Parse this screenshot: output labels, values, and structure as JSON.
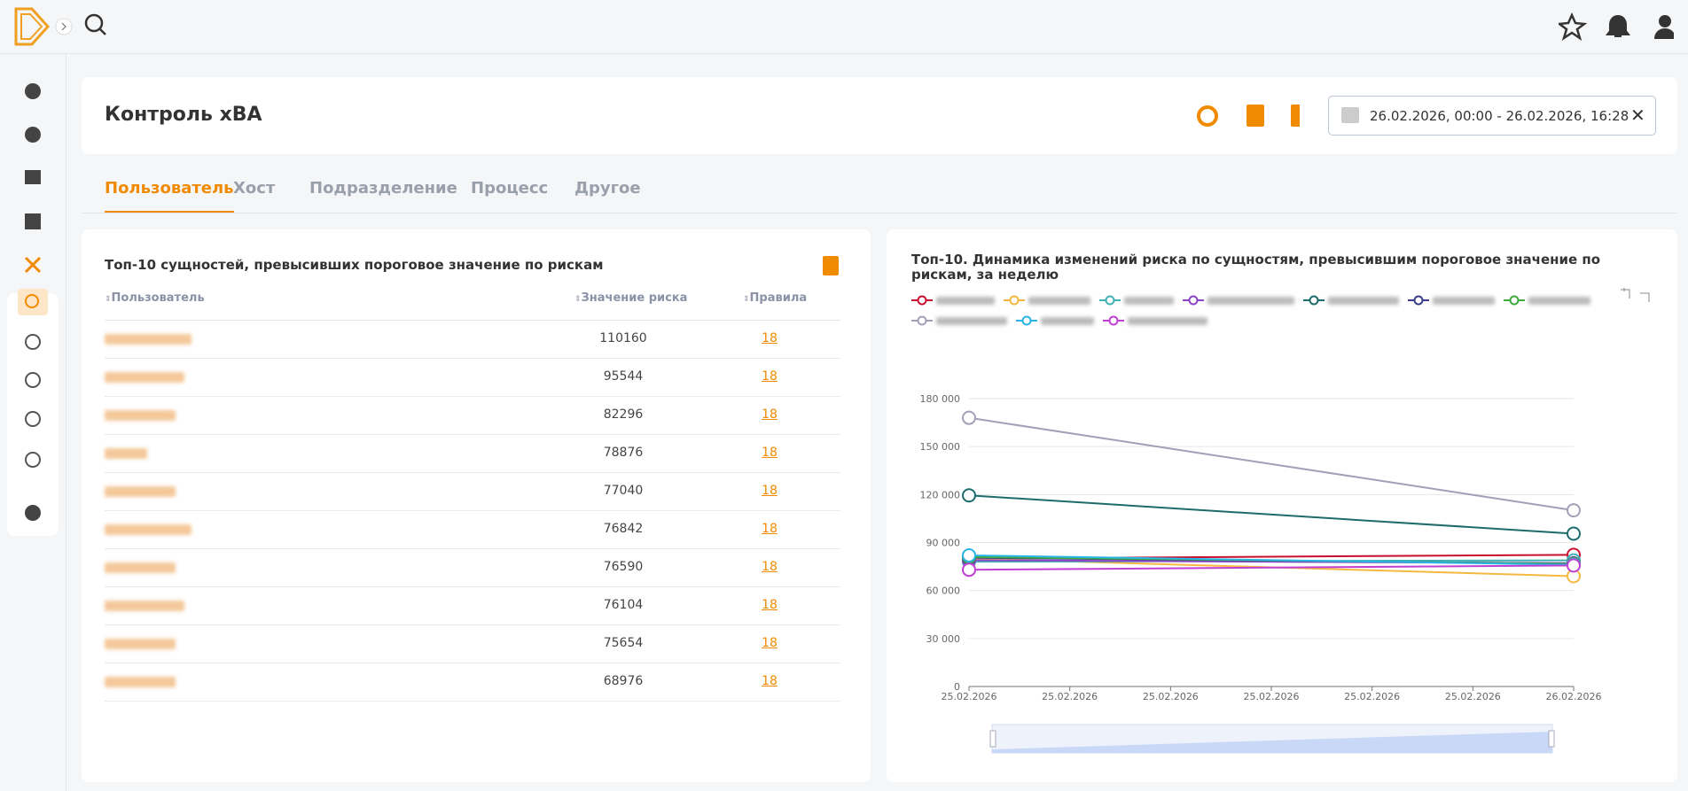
{
  "header": {
    "title": "Контроль xBA",
    "date_range": "26.02.2026, 00:00 - 26.02.2026, 16:28"
  },
  "tabs": [
    "Пользователь",
    "Хост",
    "Подразделение",
    "Процесс",
    "Другое"
  ],
  "table": {
    "title": "Топ-10 сущностей, превысивших пороговое значение по рискам",
    "columns": [
      "Пользователь",
      "Значение риска",
      "Правила"
    ],
    "rows": [
      {
        "risk": 110160,
        "rules": 18
      },
      {
        "risk": 95544,
        "rules": 18
      },
      {
        "risk": 82296,
        "rules": 18
      },
      {
        "risk": 78876,
        "rules": 18
      },
      {
        "risk": 77040,
        "rules": 18
      },
      {
        "risk": 76842,
        "rules": 18
      },
      {
        "risk": 76590,
        "rules": 18
      },
      {
        "risk": 76104,
        "rules": 18
      },
      {
        "risk": 75654,
        "rules": 18
      },
      {
        "risk": 68976,
        "rules": 18
      }
    ]
  },
  "chart_data": {
    "type": "line",
    "title": "Топ-10. Динамика изменений риска по сущностям, превысившим пороговое значение по рискам, за неделю",
    "x": [
      0,
      6
    ],
    "xlim": [
      0,
      6
    ],
    "xticks": [
      {
        "value": 0,
        "label": "25.02.2026"
      },
      {
        "value": 1,
        "label": "25.02.2026"
      },
      {
        "value": 2,
        "label": "25.02.2026"
      },
      {
        "value": 3,
        "label": "25.02.2026"
      },
      {
        "value": 4,
        "label": "25.02.2026"
      },
      {
        "value": 5,
        "label": "25.02.2026"
      },
      {
        "value": 6,
        "label": "26.02.2026"
      }
    ],
    "ylim": [
      0,
      180000
    ],
    "yticks": [
      0,
      {
        "value": 30000,
        "label": "30 000"
      },
      {
        "value": 60000,
        "label": "60 000"
      },
      {
        "value": 90000,
        "label": "90 000"
      },
      {
        "value": 120000,
        "label": "120 000"
      },
      {
        "value": 150000,
        "label": "150 000"
      },
      {
        "value": 180000,
        "label": "180 000"
      }
    ],
    "grid": true,
    "series": [
      {
        "color": "#c8102e",
        "values": [
          80000,
          82296
        ]
      },
      {
        "color": "#f5b942",
        "values": [
          80000,
          68976
        ]
      },
      {
        "color": "#3fb1b5",
        "values": [
          78000,
          78876
        ]
      },
      {
        "color": "#8e44c9",
        "values": [
          79000,
          77040
        ]
      },
      {
        "color": "#1e6b6b",
        "values": [
          119500,
          95544
        ]
      },
      {
        "color": "#3b3b8a",
        "values": [
          80500,
          76842
        ]
      },
      {
        "color": "#3daa3d",
        "values": [
          81000,
          76590
        ]
      },
      {
        "color": "#a0a0b8",
        "values": [
          168000,
          110160
        ]
      },
      {
        "color": "#2bb5e6",
        "values": [
          82000,
          76104
        ]
      },
      {
        "color": "#c03fd3",
        "values": [
          73000,
          75654
        ]
      }
    ]
  }
}
